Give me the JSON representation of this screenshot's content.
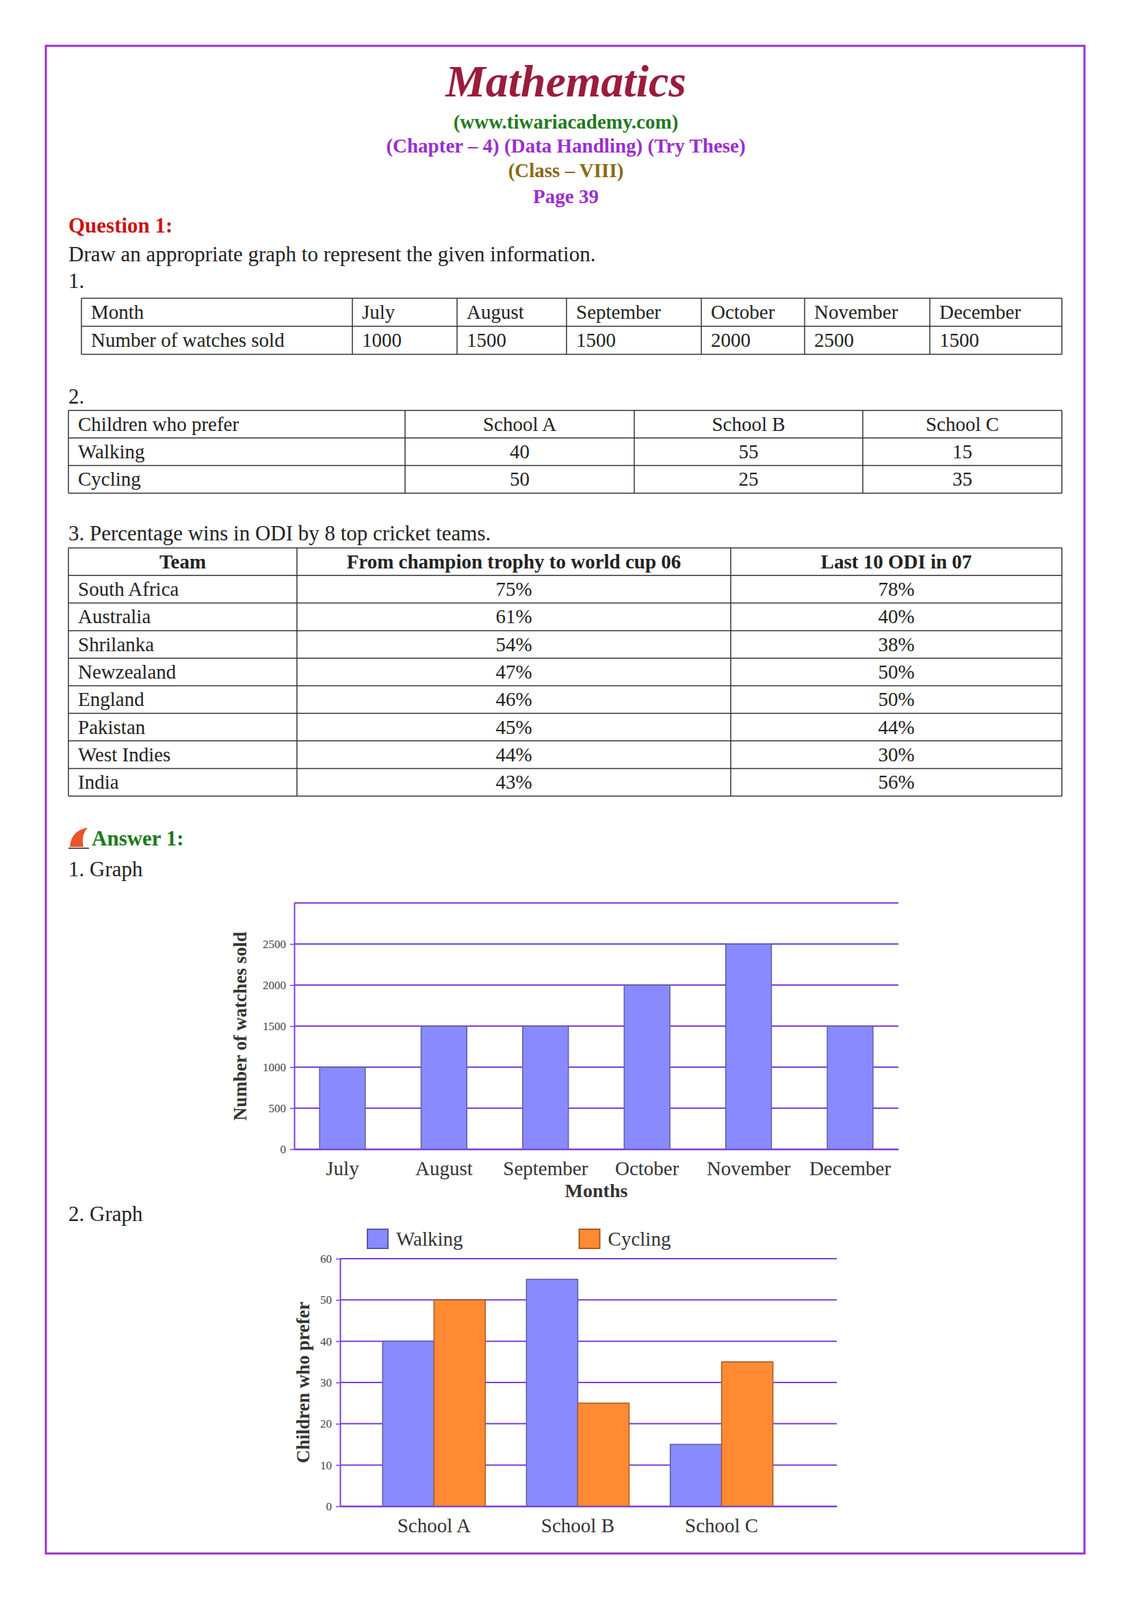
{
  "header": {
    "title": "Mathematics",
    "website": "(www.tiwariacademy.com)",
    "chapter": "(Chapter – 4) (Data Handling) (Try These)",
    "class": "(Class – VIII)",
    "page": "Page 39"
  },
  "question": {
    "label": "Question 1:",
    "text": "Draw an appropriate graph to represent the given information.",
    "part1": {
      "label": "1.",
      "table": {
        "rows": [
          [
            "Month",
            "July",
            "August",
            "September",
            "October",
            "November",
            "December"
          ],
          [
            "Number of watches sold",
            1000,
            1500,
            1500,
            2000,
            2500,
            1500
          ]
        ]
      }
    },
    "part2": {
      "label": "2.",
      "table": {
        "rows": [
          [
            "Children who prefer",
            "School A",
            "School B",
            "School C"
          ],
          [
            "Walking",
            40,
            55,
            15
          ],
          [
            "Cycling",
            50,
            25,
            35
          ]
        ]
      }
    },
    "part3": {
      "label": "3. Percentage wins in ODI by 8 top cricket teams.",
      "table": {
        "header": [
          "Team",
          "From champion trophy to world cup 06",
          "Last 10 ODI in 07"
        ],
        "rows": [
          [
            "South Africa",
            "75%",
            "78%"
          ],
          [
            "Australia",
            "61%",
            "40%"
          ],
          [
            "Shrilanka",
            "54%",
            "38%"
          ],
          [
            "Newzealand",
            "47%",
            "50%"
          ],
          [
            "England",
            "46%",
            "50%"
          ],
          [
            "Pakistan",
            "45%",
            "44%"
          ],
          [
            "West Indies",
            "44%",
            "30%"
          ],
          [
            "India",
            "43%",
            "56%"
          ]
        ]
      }
    }
  },
  "answer": {
    "label": "Answer 1:",
    "graph1": "1. Graph",
    "graph2": "2. Graph"
  },
  "chart_data": [
    {
      "type": "bar",
      "categories": [
        "July",
        "August",
        "September",
        "October",
        "November",
        "December"
      ],
      "values": [
        1000,
        1500,
        1500,
        2000,
        2500,
        1500
      ],
      "color": "#8a8aff",
      "xlabel": "Months",
      "ylabel": "Number of watches sold",
      "ylim": [
        0,
        3000
      ],
      "yticks": [
        0,
        500,
        1000,
        1500,
        2000,
        2500
      ],
      "grid": true
    },
    {
      "type": "bar",
      "categories": [
        "School A",
        "School B",
        "School C"
      ],
      "series": [
        {
          "name": "Walking",
          "color": "#8a8aff",
          "values": [
            40,
            55,
            15
          ]
        },
        {
          "name": "Cycling",
          "color": "#ff8a33",
          "values": [
            50,
            25,
            35
          ]
        }
      ],
      "ylabel": "Children who prefer",
      "ylim": [
        0,
        60
      ],
      "yticks": [
        0,
        10,
        20,
        30,
        40,
        50,
        60
      ],
      "grid": true,
      "legend": "top"
    }
  ]
}
